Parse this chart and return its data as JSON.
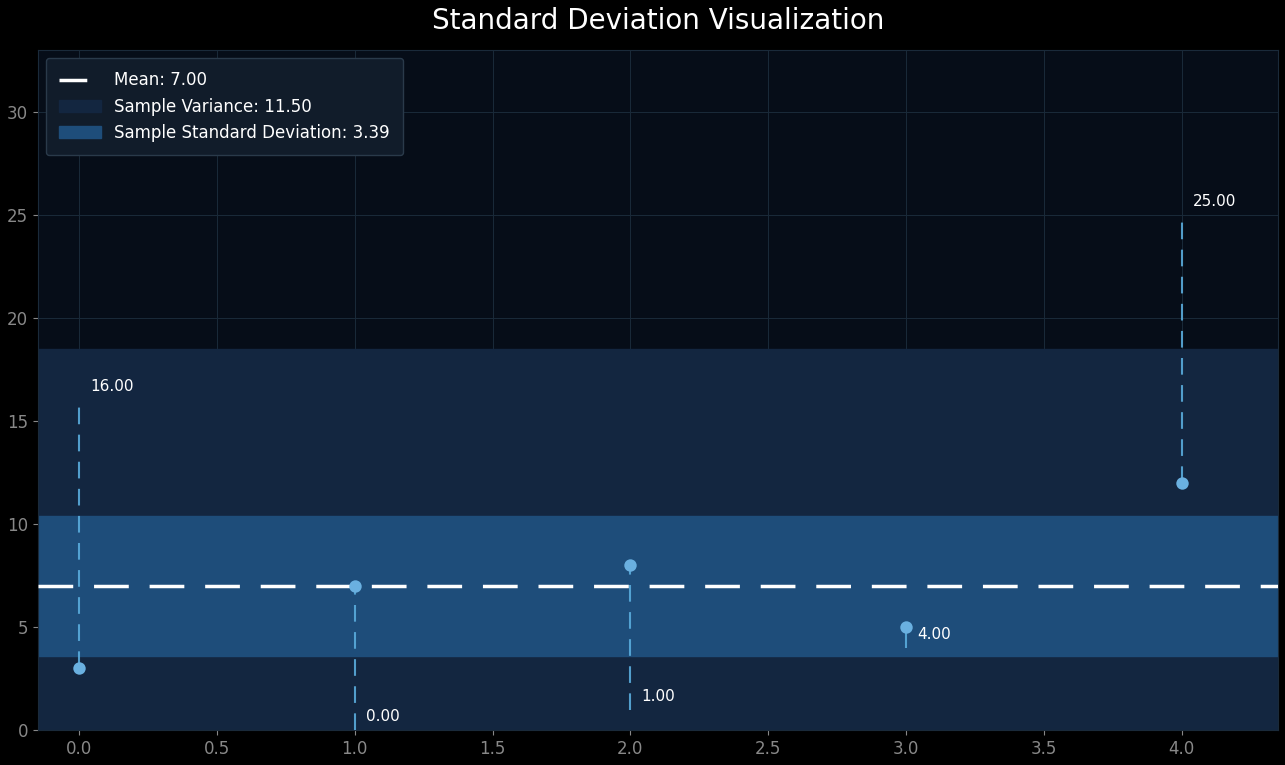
{
  "title": "Standard Deviation Visualization",
  "background_color": "#000000",
  "axes_bg_color": "#060d18",
  "data_x": [
    0,
    1,
    2,
    3,
    4
  ],
  "data_y": [
    3,
    7,
    8,
    5,
    12
  ],
  "mean": 7.0,
  "std": 3.39,
  "variance": 11.5,
  "ylim": [
    0,
    33
  ],
  "xlim": [
    -0.15,
    4.35
  ],
  "mean_line_color": "#ffffff",
  "variance_band_color": "#132640",
  "std_band_color": "#1e4d7a",
  "point_color": "#6ab0e0",
  "dashed_line_color": "#5aacdc",
  "annotation_color": "#ffffff",
  "grid_color": "#1a2a3a",
  "legend_bg": "#111c2a",
  "sq_dev_labels": [
    "16.00",
    "0.00",
    "1.00",
    "4.00",
    "25.00"
  ],
  "sq_dev_values": [
    16,
    0,
    1,
    4,
    25
  ],
  "title_fontsize": 20,
  "tick_fontsize": 12,
  "annotation_fontsize": 11,
  "legend_fontsize": 12
}
